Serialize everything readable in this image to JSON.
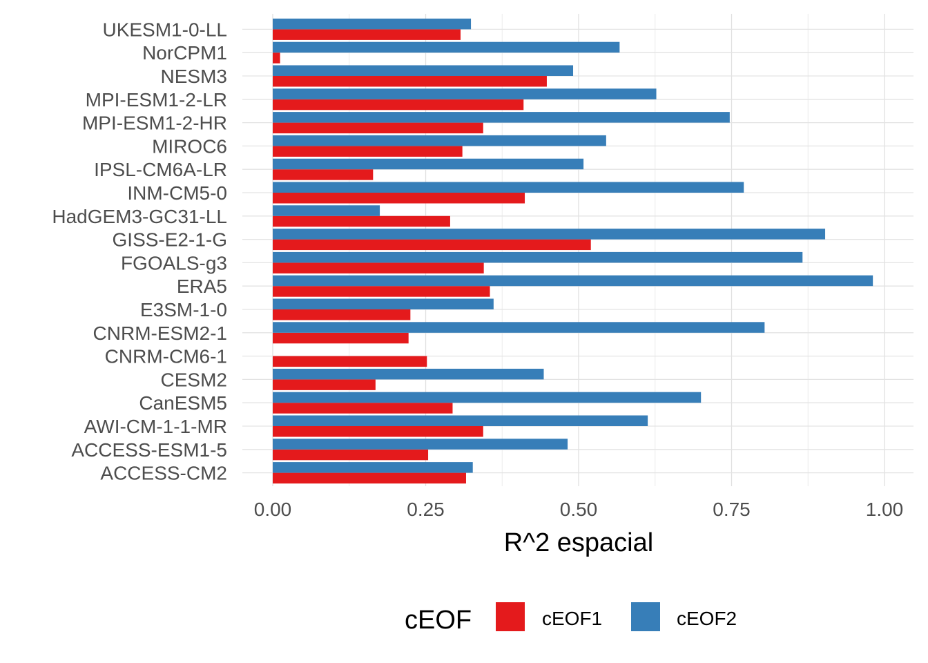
{
  "chart_data": {
    "type": "bar",
    "orientation": "horizontal",
    "title": "",
    "xlabel": "R^2 espacial",
    "ylabel": "",
    "xlim": [
      0,
      1
    ],
    "xticks": [
      0,
      0.25,
      0.5,
      0.75,
      1
    ],
    "xtick_labels": [
      "0.00",
      "0.25",
      "0.50",
      "0.75",
      "1.00"
    ],
    "grid": true,
    "legend": {
      "title": "cEOF",
      "position": "bottom",
      "entries": [
        "cEOF1",
        "cEOF2"
      ]
    },
    "categories": [
      "UKESM1-0-LL",
      "NorCPM1",
      "NESM3",
      "MPI-ESM1-2-LR",
      "MPI-ESM1-2-HR",
      "MIROC6",
      "IPSL-CM6A-LR",
      "INM-CM5-0",
      "HadGEM3-GC31-LL",
      "GISS-E2-1-G",
      "FGOALS-g3",
      "ERA5",
      "E3SM-1-0",
      "CNRM-ESM2-1",
      "CNRM-CM6-1",
      "CESM2",
      "CanESM5",
      "AWI-CM-1-1-MR",
      "ACCESS-ESM1-5",
      "ACCESS-CM2"
    ],
    "series": [
      {
        "name": "cEOF1",
        "color": "#e41a1c",
        "values": [
          0.307,
          0.012,
          0.448,
          0.41,
          0.344,
          0.31,
          0.164,
          0.412,
          0.29,
          0.52,
          0.345,
          0.355,
          0.225,
          0.222,
          0.252,
          0.168,
          0.294,
          0.344,
          0.254,
          0.316
        ]
      },
      {
        "name": "cEOF2",
        "color": "#377eb8",
        "values": [
          0.324,
          0.567,
          0.491,
          0.627,
          0.747,
          0.545,
          0.508,
          0.77,
          0.175,
          0.903,
          0.866,
          0.981,
          0.361,
          0.804,
          null,
          0.443,
          0.7,
          0.613,
          0.482,
          0.327
        ]
      }
    ]
  }
}
